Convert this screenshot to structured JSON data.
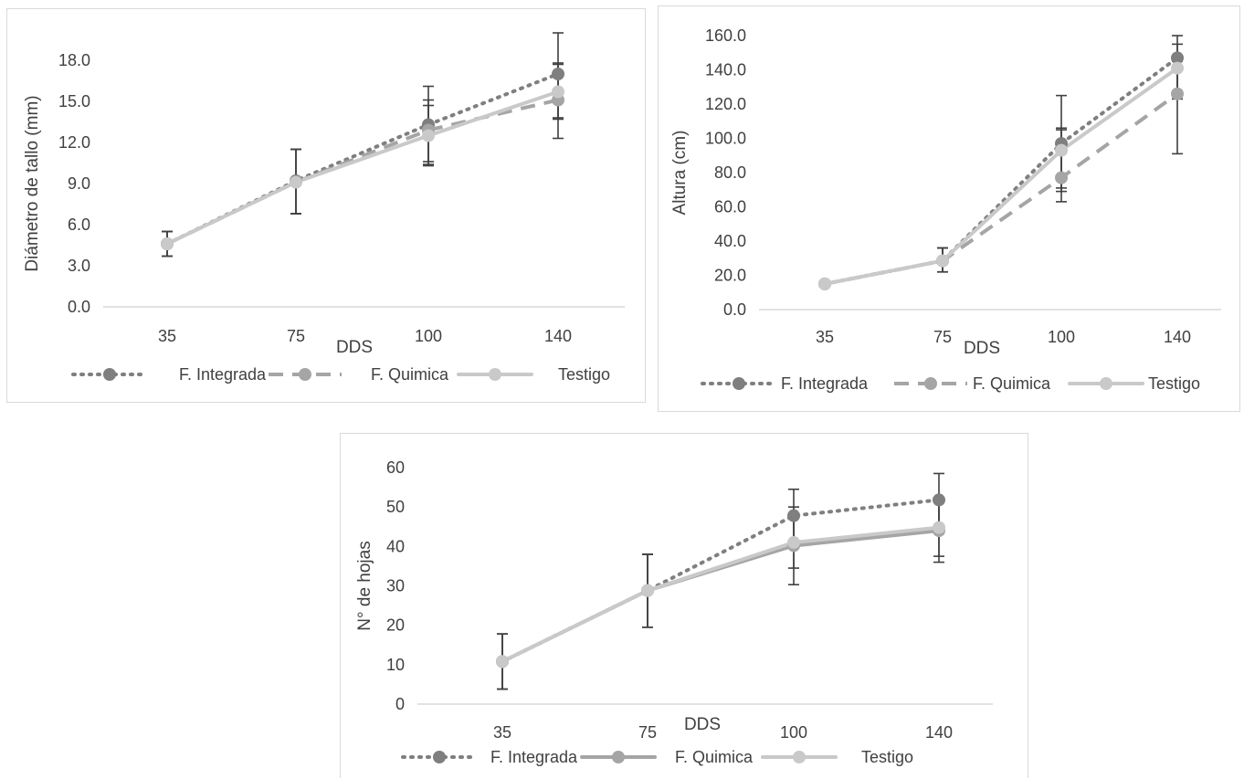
{
  "colors": {
    "integrada": "#7f7f7f",
    "quimica": "#a5a5a5",
    "testigo": "#c9c9c9",
    "errorbar": "#404040",
    "axis": "#d9d9d9"
  },
  "chart_data": [
    {
      "type": "line",
      "title": "",
      "xlabel": "DDS",
      "ylabel": "Diámetro de tallo (mm)",
      "categories": [
        "35",
        "75",
        "100",
        "140"
      ],
      "yticks": [
        "0.0",
        "3.0",
        "6.0",
        "9.0",
        "12.0",
        "15.0",
        "18.0"
      ],
      "ylim": [
        0,
        18
      ],
      "legend_position": "bottom",
      "series": [
        {
          "name": "F. Integrada",
          "style": "dotted",
          "values": [
            4.6,
            9.2,
            13.3,
            17.0
          ],
          "err_low": [
            3.7,
            6.8,
            10.4,
            13.7
          ],
          "err_high": [
            5.5,
            11.5,
            16.1,
            20.0
          ]
        },
        {
          "name": "F. Quimica",
          "style": "dashed",
          "values": [
            4.6,
            9.1,
            12.9,
            15.1
          ],
          "err_low": [
            3.7,
            6.8,
            10.6,
            12.3
          ],
          "err_high": [
            5.5,
            11.5,
            15.1,
            17.8
          ]
        },
        {
          "name": "Testigo",
          "style": "solid",
          "values": [
            4.6,
            9.1,
            12.5,
            15.7
          ],
          "err_low": [
            3.7,
            6.8,
            10.3,
            13.8
          ],
          "err_high": [
            5.5,
            11.5,
            14.7,
            17.7
          ]
        }
      ]
    },
    {
      "type": "line",
      "title": "",
      "xlabel": "DDS",
      "ylabel": "Altura (cm)",
      "categories": [
        "35",
        "75",
        "100",
        "140"
      ],
      "yticks": [
        "0.0",
        "20.0",
        "40.0",
        "60.0",
        "80.0",
        "100.0",
        "120.0",
        "140.0",
        "160.0"
      ],
      "ylim": [
        0,
        160
      ],
      "legend_position": "bottom",
      "series": [
        {
          "name": "F. Integrada",
          "style": "dotted",
          "values": [
            15,
            28.5,
            97,
            147
          ],
          "err_low": [
            15,
            22,
            69,
            123
          ],
          "err_high": [
            15,
            36,
            125,
            160
          ]
        },
        {
          "name": "F. Quimica",
          "style": "dashed",
          "values": [
            15,
            28.5,
            77,
            126
          ],
          "err_low": [
            15,
            22,
            63,
            91
          ],
          "err_high": [
            15,
            36,
            106,
            145
          ]
        },
        {
          "name": "Testigo",
          "style": "solid",
          "values": [
            15,
            28.5,
            93,
            141
          ],
          "err_low": [
            15,
            22,
            71,
            127
          ],
          "err_high": [
            15,
            36,
            105,
            155
          ]
        }
      ]
    },
    {
      "type": "line",
      "title": "",
      "xlabel": "DDS",
      "ylabel": "N° de hojas",
      "categories": [
        "35",
        "75",
        "100",
        "140"
      ],
      "yticks": [
        "0",
        "10",
        "20",
        "30",
        "40",
        "50",
        "60"
      ],
      "ylim": [
        0,
        60
      ],
      "legend_position": "bottom",
      "series": [
        {
          "name": "F. Integrada",
          "style": "dotted",
          "values": [
            10.8,
            28.8,
            47.8,
            51.8
          ],
          "err_low": [
            3.8,
            19.5,
            41,
            45
          ],
          "err_high": [
            17.8,
            38,
            54.5,
            58.5
          ]
        },
        {
          "name": "F. Quimica",
          "style": "solid-dark",
          "values": [
            10.8,
            28.8,
            40.2,
            44.0
          ],
          "err_low": [
            3.8,
            19.5,
            30.3,
            36.0
          ],
          "err_high": [
            17.8,
            38,
            50,
            52
          ]
        },
        {
          "name": "Testigo",
          "style": "solid",
          "values": [
            10.8,
            28.8,
            41.0,
            44.8
          ],
          "err_low": [
            3.8,
            19.5,
            34.5,
            37.5
          ],
          "err_high": [
            17.8,
            38,
            47.5,
            52
          ]
        }
      ]
    }
  ]
}
